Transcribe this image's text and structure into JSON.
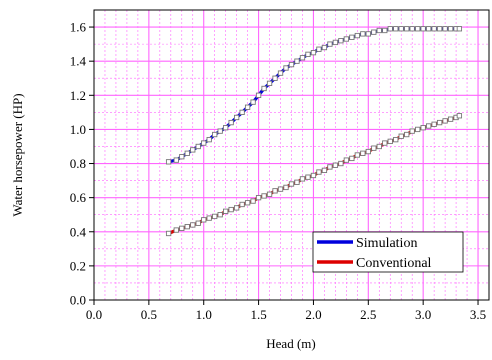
{
  "chart_data": {
    "type": "line",
    "xlabel": "Head (m)",
    "ylabel": "Water horsepower (HP)",
    "xlim": [
      0,
      3.6
    ],
    "ylim": [
      0,
      1.7
    ],
    "x_ticks": [
      "0.0",
      "0.5",
      "1.0",
      "1.5",
      "2.0",
      "2.5",
      "3.0",
      "3.5"
    ],
    "y_ticks": [
      "0.0",
      "0.2",
      "0.4",
      "0.6",
      "0.8",
      "1.0",
      "1.2",
      "1.4",
      "1.6"
    ],
    "x_tick_values": [
      0,
      0.5,
      1.0,
      1.5,
      2.0,
      2.5,
      3.0,
      3.5
    ],
    "y_tick_values": [
      0,
      0.2,
      0.4,
      0.6,
      0.8,
      1.0,
      1.2,
      1.4,
      1.6
    ],
    "grid": true,
    "grid_color": "#ff66ff",
    "legend_position": "bottom-right",
    "series": [
      {
        "name": "Simulation",
        "color": "#0000dd",
        "x": [
          0.68,
          0.75,
          0.8,
          0.85,
          0.9,
          0.95,
          1.0,
          1.05,
          1.1,
          1.15,
          1.2,
          1.25,
          1.3,
          1.35,
          1.4,
          1.45,
          1.5,
          1.55,
          1.6,
          1.65,
          1.7,
          1.75,
          1.8,
          1.85,
          1.9,
          1.95,
          2.0,
          2.05,
          2.1,
          2.15,
          2.2,
          2.25,
          2.3,
          2.35,
          2.4,
          2.45,
          2.5,
          2.55,
          2.6,
          2.65,
          2.7,
          2.75,
          2.8,
          2.85,
          2.9,
          2.95,
          3.0,
          3.05,
          3.1,
          3.15,
          3.2,
          3.25,
          3.3,
          3.33
        ],
        "y": [
          0.81,
          0.82,
          0.84,
          0.86,
          0.88,
          0.9,
          0.92,
          0.94,
          0.97,
          0.99,
          1.01,
          1.04,
          1.07,
          1.1,
          1.13,
          1.16,
          1.2,
          1.24,
          1.27,
          1.3,
          1.33,
          1.36,
          1.38,
          1.4,
          1.42,
          1.44,
          1.45,
          1.47,
          1.48,
          1.5,
          1.51,
          1.52,
          1.53,
          1.54,
          1.55,
          1.56,
          1.56,
          1.57,
          1.58,
          1.58,
          1.59,
          1.59,
          1.59,
          1.59,
          1.59,
          1.59,
          1.59,
          1.59,
          1.59,
          1.59,
          1.59,
          1.59,
          1.59,
          1.59
        ]
      },
      {
        "name": "Conventional",
        "color": "#dd0000",
        "x": [
          0.68,
          0.75,
          0.8,
          0.85,
          0.9,
          0.95,
          1.0,
          1.05,
          1.1,
          1.15,
          1.2,
          1.25,
          1.3,
          1.35,
          1.4,
          1.45,
          1.5,
          1.55,
          1.6,
          1.65,
          1.7,
          1.75,
          1.8,
          1.85,
          1.9,
          1.95,
          2.0,
          2.05,
          2.1,
          2.15,
          2.2,
          2.25,
          2.3,
          2.35,
          2.4,
          2.45,
          2.5,
          2.55,
          2.6,
          2.65,
          2.7,
          2.75,
          2.8,
          2.85,
          2.9,
          2.95,
          3.0,
          3.05,
          3.1,
          3.15,
          3.2,
          3.25,
          3.3,
          3.33
        ],
        "y": [
          0.39,
          0.41,
          0.42,
          0.43,
          0.44,
          0.45,
          0.47,
          0.48,
          0.49,
          0.5,
          0.52,
          0.53,
          0.54,
          0.56,
          0.57,
          0.58,
          0.6,
          0.61,
          0.62,
          0.64,
          0.65,
          0.66,
          0.68,
          0.69,
          0.71,
          0.72,
          0.73,
          0.75,
          0.76,
          0.78,
          0.79,
          0.8,
          0.82,
          0.83,
          0.85,
          0.86,
          0.87,
          0.89,
          0.9,
          0.92,
          0.93,
          0.94,
          0.96,
          0.97,
          0.99,
          1.0,
          1.01,
          1.02,
          1.03,
          1.04,
          1.05,
          1.06,
          1.07,
          1.08
        ]
      }
    ]
  }
}
